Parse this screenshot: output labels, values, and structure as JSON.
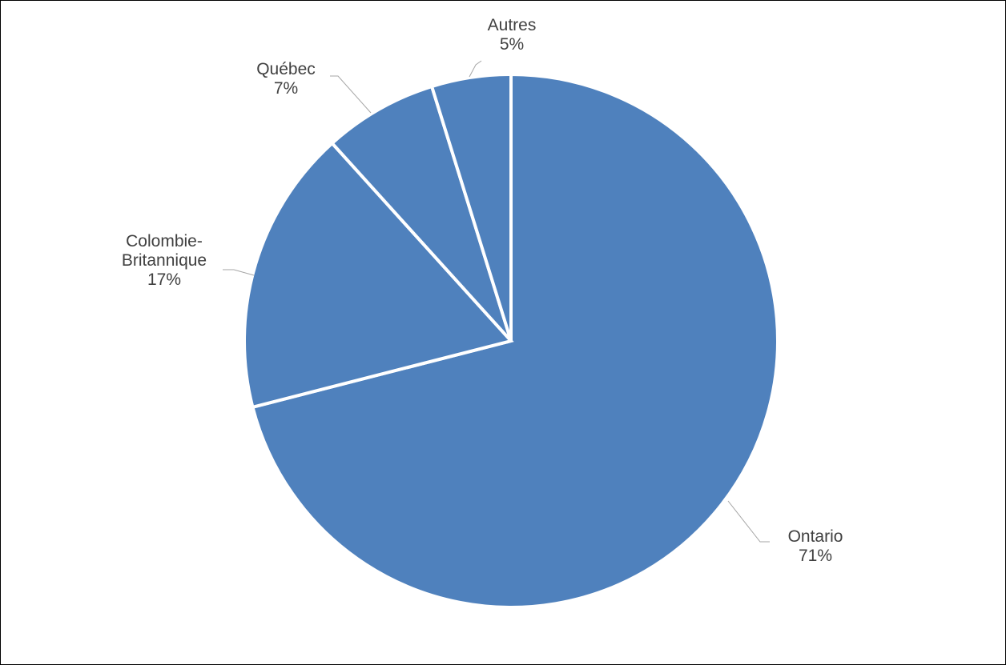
{
  "chart_data": {
    "type": "pie",
    "title": "",
    "start_angle_deg": 0,
    "direction": "clockwise",
    "slices": [
      {
        "id": "ontario",
        "label_lines": [
          "Ontario"
        ],
        "percent_label": "71%",
        "value": 71.0
      },
      {
        "id": "colombie-britannique",
        "label_lines": [
          "Colombie-",
          "Britannique"
        ],
        "percent_label": "17%",
        "value": 17.3
      },
      {
        "id": "quebec",
        "label_lines": [
          "Québec"
        ],
        "percent_label": "7%",
        "value": 6.9
      },
      {
        "id": "autres",
        "label_lines": [
          "Autres"
        ],
        "percent_label": "5%",
        "value": 4.8
      }
    ],
    "colors": {
      "slice": "#4f81bd",
      "slice_border": "#ffffff",
      "leader": "#a6a6a6",
      "label": "#404040"
    },
    "legend": "none",
    "data_labels": "outside with leader lines"
  }
}
